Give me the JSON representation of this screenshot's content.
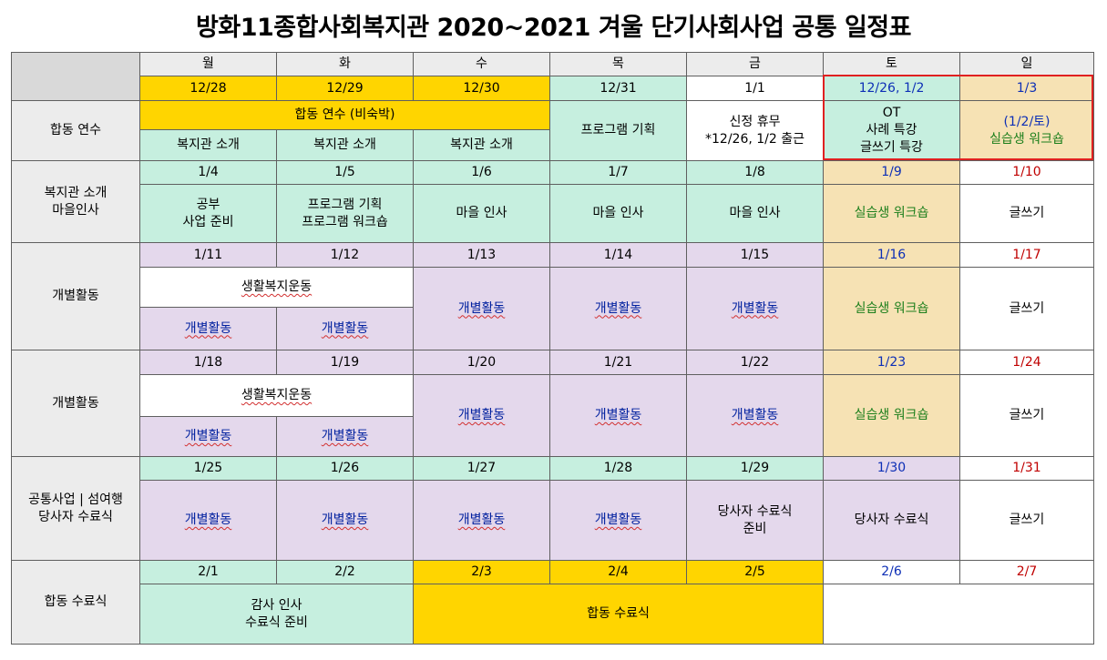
{
  "title": "방화11종합사회복지관 2020~2021 겨울 단기사회사업 공통 일정표",
  "days": [
    "월",
    "화",
    "수",
    "목",
    "금",
    "토",
    "일"
  ],
  "week0": {
    "dates": [
      "12/28",
      "12/29",
      "12/30",
      "12/31",
      "1/1",
      "12/26, 1/2",
      "1/3"
    ],
    "label": "합동 연수",
    "joint_training": "합동 연수 (비숙박)",
    "intro": [
      "복지관 소개",
      "복지관 소개",
      "복지관 소개"
    ],
    "program_planning": "프로그램 기획",
    "holiday": [
      "신정 휴무",
      "*12/26, 1/2 출근"
    ],
    "sat": [
      "OT",
      "사례 특강",
      "글쓰기 특강"
    ],
    "sun": [
      "(1/2/토)",
      "실습생 워크숍"
    ]
  },
  "week1": {
    "label": [
      "복지관 소개",
      "마을인사"
    ],
    "dates": [
      "1/4",
      "1/5",
      "1/6",
      "1/7",
      "1/8",
      "1/9",
      "1/10"
    ],
    "mon": [
      "공부",
      "사업 준비"
    ],
    "tue": [
      "프로그램 기획",
      "프로그램 워크숍"
    ],
    "wed": "마을 인사",
    "thu": "마을 인사",
    "fri": "마을 인사",
    "sat": "실습생 워크숍",
    "sun": "글쓰기"
  },
  "week2": {
    "label": "개별활동",
    "dates": [
      "1/11",
      "1/12",
      "1/13",
      "1/14",
      "1/15",
      "1/16",
      "1/17"
    ],
    "movement": "생활복지운동",
    "mon": "개별활동",
    "tue": "개별활동",
    "wed": "개별활동",
    "thu": "개별활동",
    "fri": "개별활동",
    "sat": "실습생 워크숍",
    "sun": "글쓰기"
  },
  "week3": {
    "label": "개별활동",
    "dates": [
      "1/18",
      "1/19",
      "1/20",
      "1/21",
      "1/22",
      "1/23",
      "1/24"
    ],
    "movement": "생활복지운동",
    "mon": "개별활동",
    "tue": "개별활동",
    "wed": "개별활동",
    "thu": "개별활동",
    "fri": "개별활동",
    "sat": "실습생 워크숍",
    "sun": "글쓰기"
  },
  "week4": {
    "label": [
      "공통사업 | 섬여행",
      "당사자 수료식"
    ],
    "dates": [
      "1/25",
      "1/26",
      "1/27",
      "1/28",
      "1/29",
      "1/30",
      "1/31"
    ],
    "mon": "개별활동",
    "tue": "개별활동",
    "wed": "개별활동",
    "thu": "개별활동",
    "fri": [
      "당사자 수료식",
      "준비"
    ],
    "sat": "당사자 수료식",
    "sun": "글쓰기"
  },
  "week5": {
    "label": "합동 수료식",
    "dates": [
      "2/1",
      "2/2",
      "2/3",
      "2/4",
      "2/5",
      "2/6",
      "2/7"
    ],
    "thanks": [
      "감사 인사",
      "수료식 준비"
    ],
    "joint_ceremony": "합동 수료식"
  },
  "colors": {
    "yellow": "#ffd500",
    "mint": "#c6efdf",
    "lavender": "#e4d8ec",
    "beige": "#f6e2b4",
    "header_gray": "#ececec",
    "saturday_blue": "#0d2fb6",
    "sunday_red": "#c00000",
    "workshop_green": "#1c7f1c",
    "highlight_border": "#e02020"
  }
}
